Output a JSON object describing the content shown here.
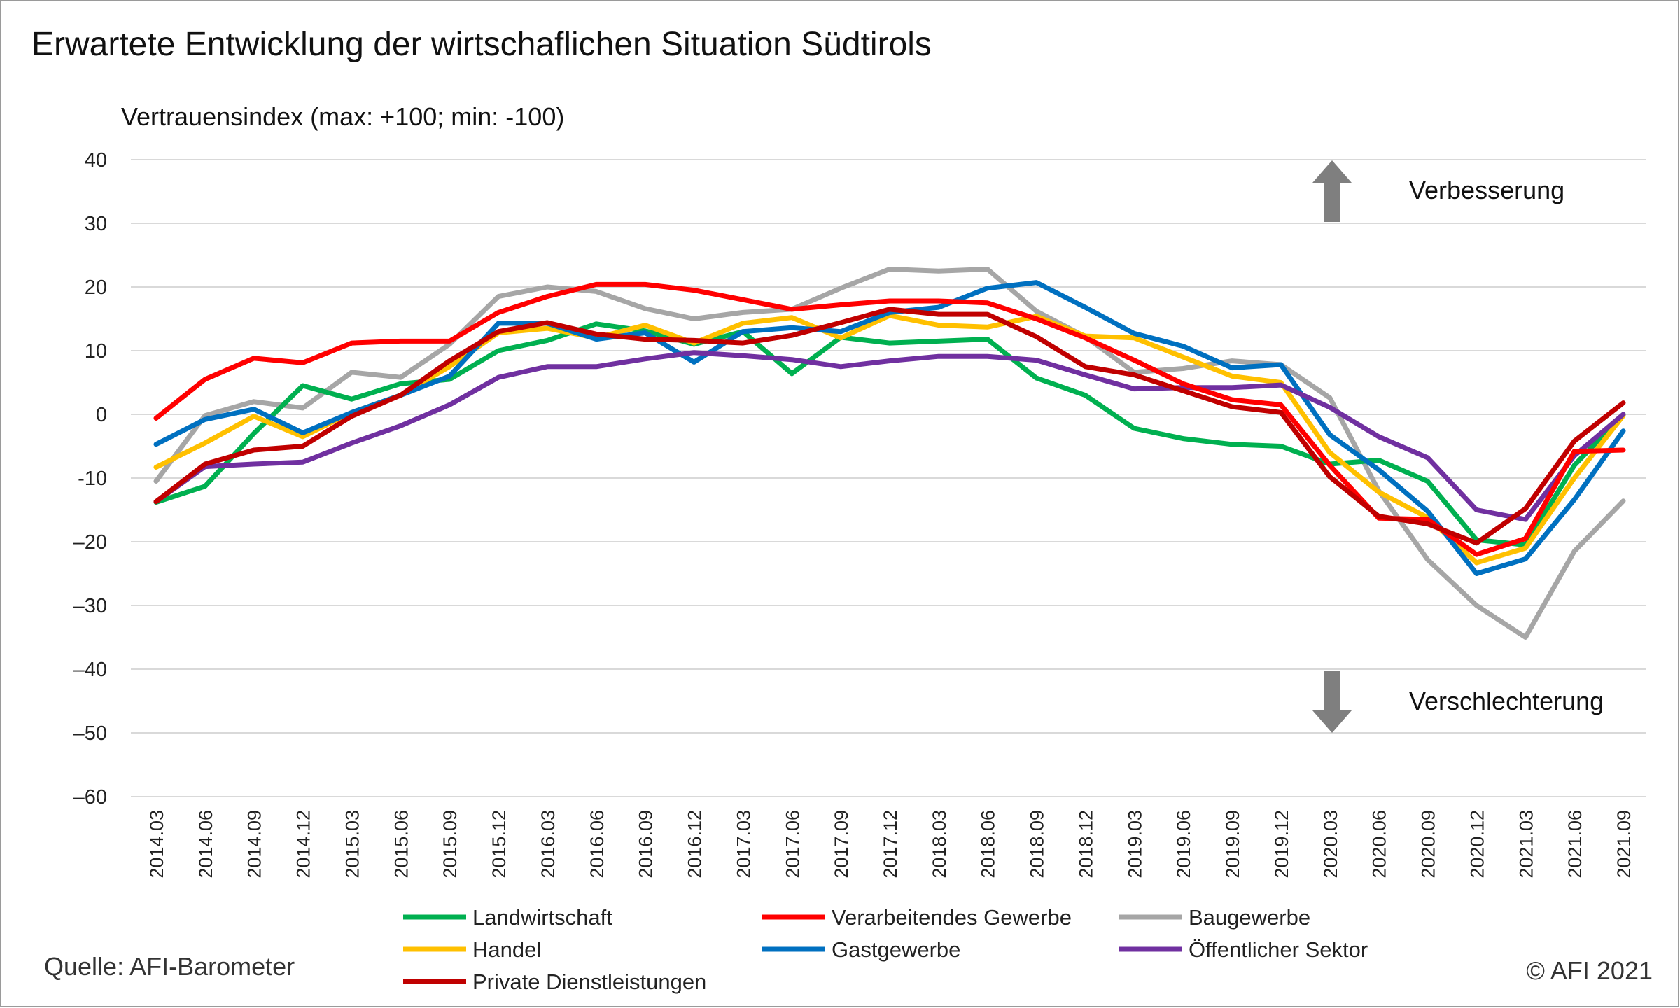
{
  "title": "Erwartete Entwicklung der wirtschaflichen Situation Südtirols",
  "subtitle": "Vertrauensindex (max: +100; min: -100)",
  "source": "Quelle: AFI-Barometer",
  "copyright": "© AFI 2021",
  "annotations": {
    "up": "Verbesserung",
    "down": "Verschlechterung",
    "arrow_color": "#7f7f7f"
  },
  "chart_data": {
    "type": "line",
    "x": [
      "2014.03",
      "2014.06",
      "2014.09",
      "2014.12",
      "2015.03",
      "2015.06",
      "2015.09",
      "2015.12",
      "2016.03",
      "2016.06",
      "2016.09",
      "2016.12",
      "2017.03",
      "2017.06",
      "2017.09",
      "2017.12",
      "2018.03",
      "2018.06",
      "2018.09",
      "2018.12",
      "2019.03",
      "2019.06",
      "2019.09",
      "2019.12",
      "2020.03",
      "2020.06",
      "2020.09",
      "2020.12",
      "2021.03",
      "2021.06",
      "2021.09"
    ],
    "ylim": [
      -60,
      40
    ],
    "yticks": [
      40,
      30,
      20,
      10,
      0,
      -10,
      -20,
      -30,
      -40,
      -50,
      -60
    ],
    "ytick_labels": [
      "40",
      "30",
      "20",
      "10",
      "0",
      "-10",
      "–20",
      "–30",
      "–40",
      "–50",
      "–60"
    ],
    "grid": true,
    "legend": "bottom",
    "series": [
      {
        "name": "Baugewerbe",
        "color": "#a6a6a6",
        "values": [
          -10.5,
          -0.2,
          2,
          1,
          6.6,
          5.8,
          11,
          18.5,
          20,
          19.3,
          16.6,
          15,
          16,
          16.5,
          19.8,
          22.8,
          22.5,
          22.8,
          16.2,
          12.2,
          6.6,
          7.2,
          8.4,
          7.8,
          2.6,
          -12,
          -22.8,
          -30,
          -35,
          -21.5,
          -13.6
        ]
      },
      {
        "name": "Landwirtschaft",
        "color": "#00b050",
        "values": [
          -13.8,
          -11.3,
          -3,
          4.5,
          2.4,
          4.8,
          5.5,
          10,
          11.6,
          14.2,
          13.1,
          11,
          13,
          6.4,
          12.1,
          11.2,
          11.5,
          11.8,
          5.7,
          3,
          -2.2,
          -3.8,
          -4.7,
          -5,
          -7.8,
          -7.2,
          -10.5,
          -19.7,
          -20.5,
          -8,
          0
        ]
      },
      {
        "name": "Handel",
        "color": "#ffc000",
        "values": [
          -8.3,
          -4.5,
          -0.3,
          -3.5,
          0.3,
          3,
          7.5,
          12.8,
          13.5,
          12,
          14,
          11.2,
          14.3,
          15.2,
          12,
          15.5,
          14,
          13.7,
          15.4,
          12.3,
          12,
          9,
          6,
          5,
          -6,
          -12.2,
          -16.2,
          -23.3,
          -21,
          -10,
          -0.2
        ]
      },
      {
        "name": "Gastgewerbe",
        "color": "#0070c0",
        "values": [
          -4.7,
          -0.8,
          0.8,
          -2.9,
          0.3,
          3,
          6,
          14.3,
          14.3,
          11.8,
          12.8,
          8.2,
          13,
          13.6,
          13,
          16,
          16.8,
          19.8,
          20.7,
          16.8,
          12.7,
          10.7,
          7.3,
          7.8,
          -3.2,
          -8.7,
          -15.2,
          -25,
          -22.7,
          -13.4,
          -2.6
        ]
      },
      {
        "name": "Öffentlicher Sektor",
        "color": "#7030a0",
        "values": [
          -13.7,
          -8.2,
          -7.8,
          -7.5,
          -4.5,
          -1.8,
          1.5,
          5.8,
          7.5,
          7.5,
          8.7,
          9.7,
          9.2,
          8.6,
          7.5,
          8.4,
          9.1,
          9.1,
          8.5,
          6.2,
          4,
          4.2,
          4.2,
          4.6,
          1.1,
          -3.5,
          -6.8,
          -15,
          -16.5,
          -6.5,
          0
        ]
      },
      {
        "name": "Verarbeitendes Gewerbe",
        "color": "#ff0000",
        "values": [
          -0.6,
          5.5,
          8.8,
          8.1,
          11.2,
          11.5,
          11.5,
          16,
          18.5,
          20.4,
          20.4,
          19.5,
          18,
          16.5,
          17.2,
          17.8,
          17.8,
          17.5,
          15,
          12,
          8.5,
          4.8,
          2.3,
          1.5,
          -8,
          -16.3,
          -16.5,
          -22,
          -19.5,
          -5.8,
          -5.6
        ]
      },
      {
        "name": "Private Dienstleistungen",
        "color": "#c00000",
        "values": [
          -13.7,
          -7.8,
          -5.6,
          -5,
          -0.3,
          3,
          8.4,
          13,
          14.4,
          12.6,
          11.8,
          11.6,
          11.2,
          12.4,
          14.4,
          16.5,
          15.7,
          15.7,
          12.2,
          7.5,
          6.2,
          3.7,
          1.2,
          0.3,
          -9.8,
          -16,
          -17.2,
          -20.2,
          -14.8,
          -4.2,
          1.8
        ]
      }
    ],
    "legend_order": [
      "Landwirtschaft",
      "Verarbeitendes Gewerbe",
      "Baugewerbe",
      "Handel",
      "Gastgewerbe",
      "Öffentlicher Sektor",
      "Private Dienstleistungen"
    ]
  }
}
